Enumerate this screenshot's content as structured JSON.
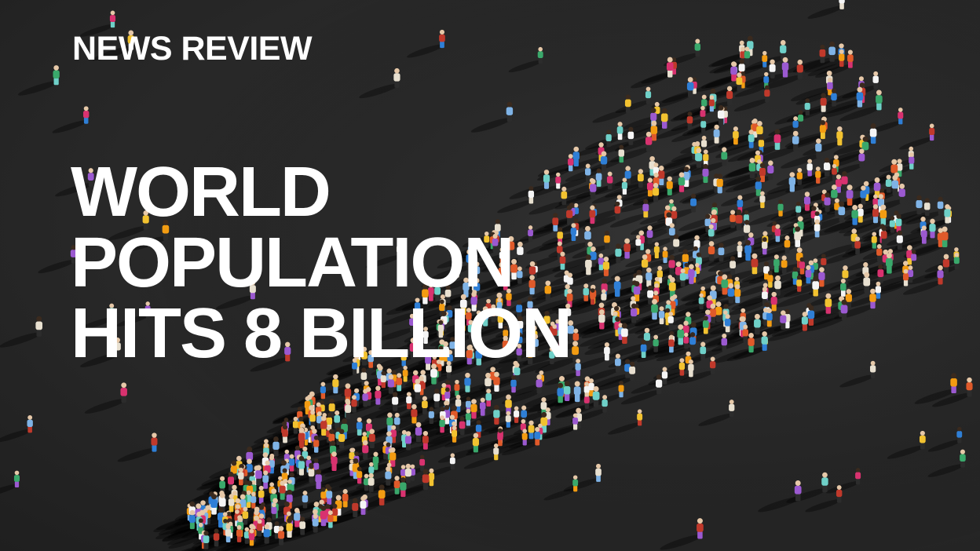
{
  "image": {
    "kicker": "NEWS REVIEW",
    "headline": [
      "WORLD",
      "POPULATION",
      "HITS 8 BILLION"
    ],
    "colors": {
      "background": "#2a2a2a",
      "text": "#ffffff",
      "people": [
        "#e8e0d0",
        "#f2c230",
        "#e05a2a",
        "#3aa86b",
        "#2f7fd6",
        "#d8326f",
        "#9b59d0",
        "#f5f5f5",
        "#6fd0c8",
        "#c0392b",
        "#f39c12",
        "#7fb3e6"
      ]
    }
  }
}
